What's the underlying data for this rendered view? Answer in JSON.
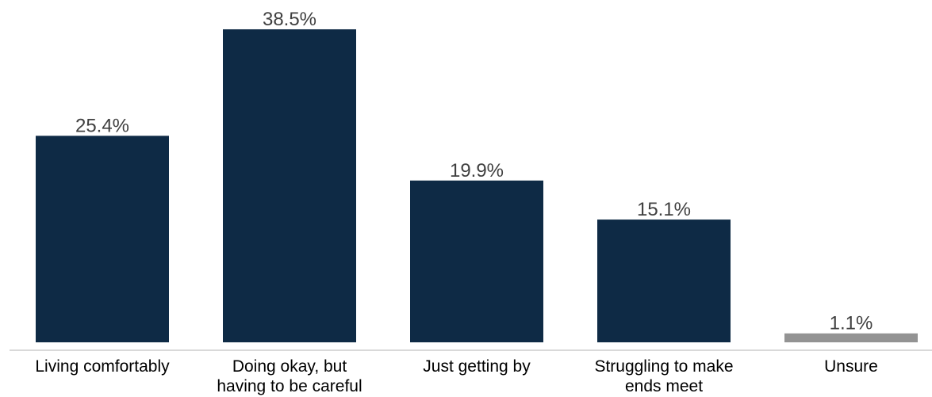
{
  "chart_data": {
    "type": "bar",
    "categories": [
      [
        "Living comfortably"
      ],
      [
        "Doing okay, but",
        "having to be careful"
      ],
      [
        "Just getting by"
      ],
      [
        "Struggling to make",
        "ends meet"
      ],
      [
        "Unsure"
      ]
    ],
    "values": [
      25.4,
      38.5,
      19.9,
      15.1,
      1.1
    ],
    "value_labels": [
      "25.4%",
      "38.5%",
      "19.9%",
      "15.1%",
      "1.1%"
    ],
    "bar_colors": [
      "#0e2a45",
      "#0e2a45",
      "#0e2a45",
      "#0e2a45",
      "#939393"
    ],
    "axis_line_color": "#d9d9d9",
    "title": "",
    "xlabel": "",
    "ylabel": "",
    "ylim": [
      0,
      40
    ],
    "grid": false,
    "legend": "none"
  }
}
